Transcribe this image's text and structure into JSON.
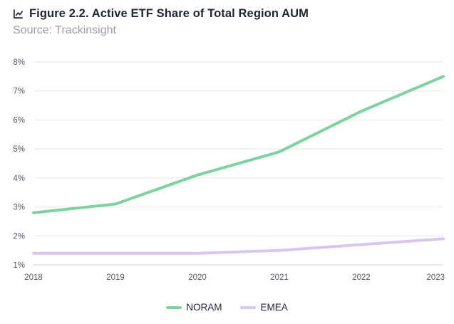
{
  "header": {
    "icon": "chart-icon",
    "title": "Figure 2.2. Active ETF Share of Total Region AUM",
    "subtitle": "Source: Trackinsight"
  },
  "chart_data": {
    "type": "line",
    "title": "Figure 2.2. Active ETF Share of Total Region AUM",
    "subtitle": "Source: Trackinsight",
    "xlabel": "",
    "ylabel": "",
    "x": [
      2018,
      2019,
      2020,
      2021,
      2022,
      2023
    ],
    "x_tick_labels": [
      "2018",
      "2019",
      "2020",
      "2021",
      "2022",
      "2023"
    ],
    "ylim": [
      1,
      8
    ],
    "y_ticks": [
      1,
      2,
      3,
      4,
      5,
      6,
      7,
      8
    ],
    "y_tick_labels": [
      "1%",
      "2%",
      "3%",
      "4%",
      "5%",
      "6%",
      "7%",
      "8%"
    ],
    "grid": true,
    "legend_position": "bottom-center",
    "series": [
      {
        "name": "NORAM",
        "color": "#7dd3a0",
        "values": [
          2.8,
          3.1,
          4.1,
          4.9,
          6.3,
          7.5
        ]
      },
      {
        "name": "EMEA",
        "color": "#d9c6ee",
        "values": [
          1.4,
          1.4,
          1.4,
          1.5,
          1.7,
          1.9
        ]
      }
    ]
  }
}
